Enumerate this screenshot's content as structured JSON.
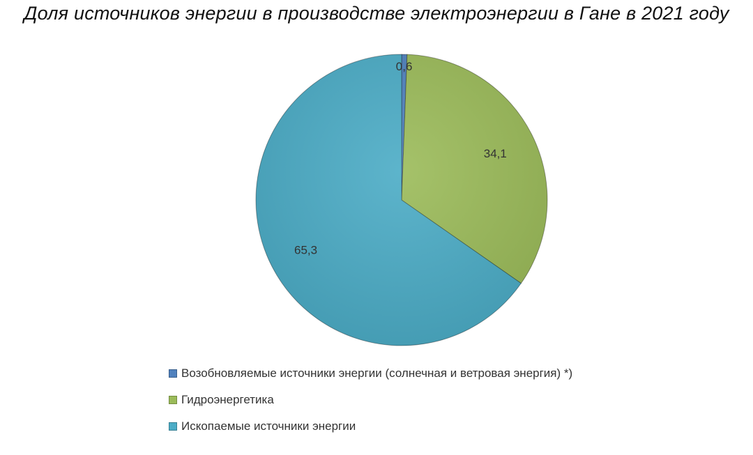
{
  "chart_data": {
    "type": "pie",
    "title": "Доля источников энергии в производстве электроэнергии в Гане в 2021 году",
    "slices": [
      {
        "label": "Возобновляемые источники энергии (солнечная и ветровая энергия) *)",
        "value": 0.6,
        "value_label": "0,6",
        "color": "#4f81bd"
      },
      {
        "label": "Гидроэнергетика",
        "value": 34.1,
        "value_label": "34,1",
        "color": "#9bbb59"
      },
      {
        "label": "Ископаемые источники энергии",
        "value": 65.3,
        "value_label": "65,3",
        "color": "#4bacc6"
      }
    ],
    "start_angle": "top",
    "direction": "clockwise",
    "legend_position": "bottom"
  }
}
